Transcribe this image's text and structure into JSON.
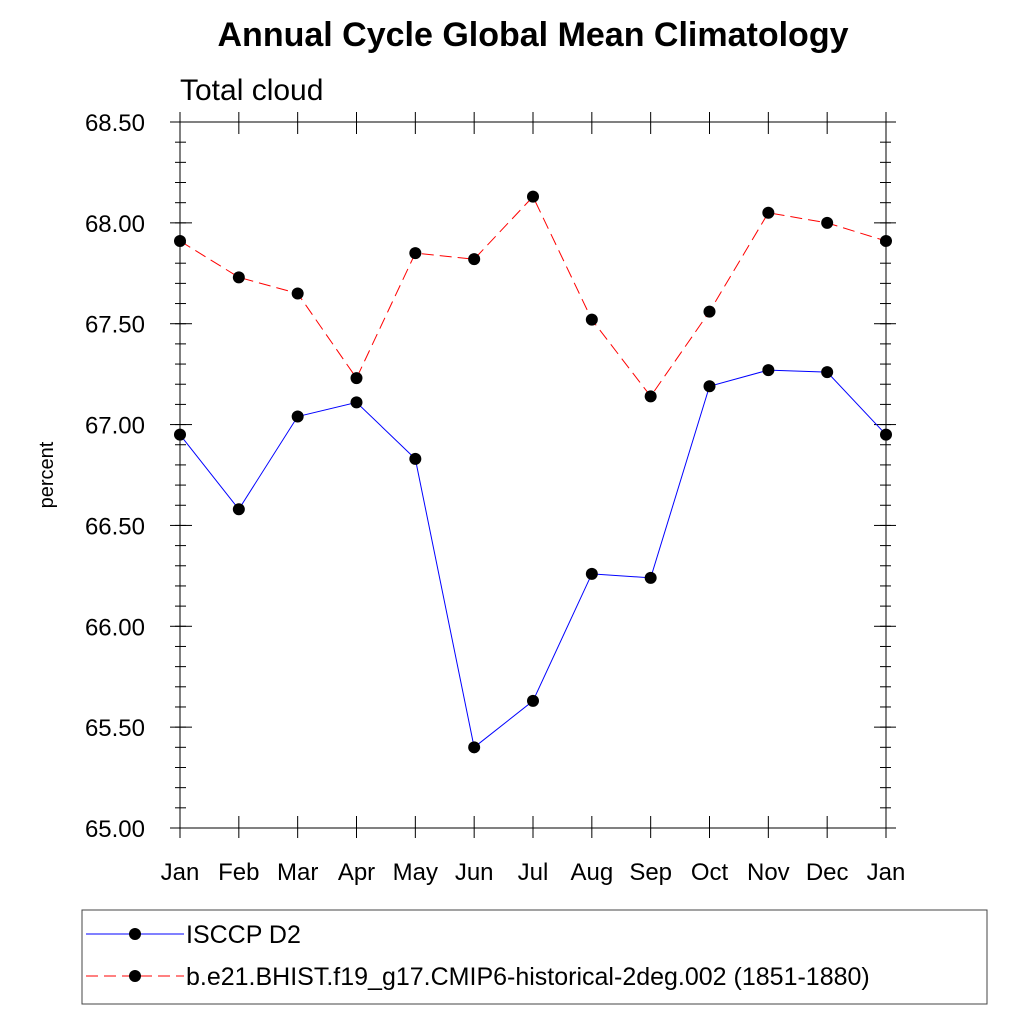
{
  "chart_data": {
    "type": "line",
    "title": "Annual Cycle Global Mean Climatology",
    "subtitle": "Total cloud",
    "xlabel": "",
    "ylabel": "percent",
    "categories": [
      "Jan",
      "Feb",
      "Mar",
      "Apr",
      "May",
      "Jun",
      "Jul",
      "Aug",
      "Sep",
      "Oct",
      "Nov",
      "Dec",
      "Jan"
    ],
    "ylim": [
      65.0,
      68.5
    ],
    "yticks": [
      65.0,
      65.5,
      66.0,
      66.5,
      67.0,
      67.5,
      68.0,
      68.5
    ],
    "ytick_labels": [
      "65.00",
      "65.50",
      "66.00",
      "66.50",
      "67.00",
      "67.50",
      "68.00",
      "68.50"
    ],
    "grid": false,
    "legend_position": "bottom",
    "series": [
      {
        "name": "ISCCP D2",
        "color": "#0000ff",
        "dash": "solid",
        "marker": "filled-circle",
        "values": [
          66.95,
          66.58,
          67.04,
          67.11,
          66.83,
          65.4,
          65.63,
          66.26,
          66.24,
          67.19,
          67.27,
          67.26,
          66.95
        ]
      },
      {
        "name": "b.e21.BHIST.f19_g17.CMIP6-historical-2deg.002 (1851-1880)",
        "color": "#ff0000",
        "dash": "dashed",
        "marker": "filled-circle",
        "values": [
          67.91,
          67.73,
          67.65,
          67.23,
          67.85,
          67.82,
          68.13,
          67.52,
          67.14,
          67.56,
          68.05,
          68.0,
          67.91
        ]
      }
    ]
  }
}
